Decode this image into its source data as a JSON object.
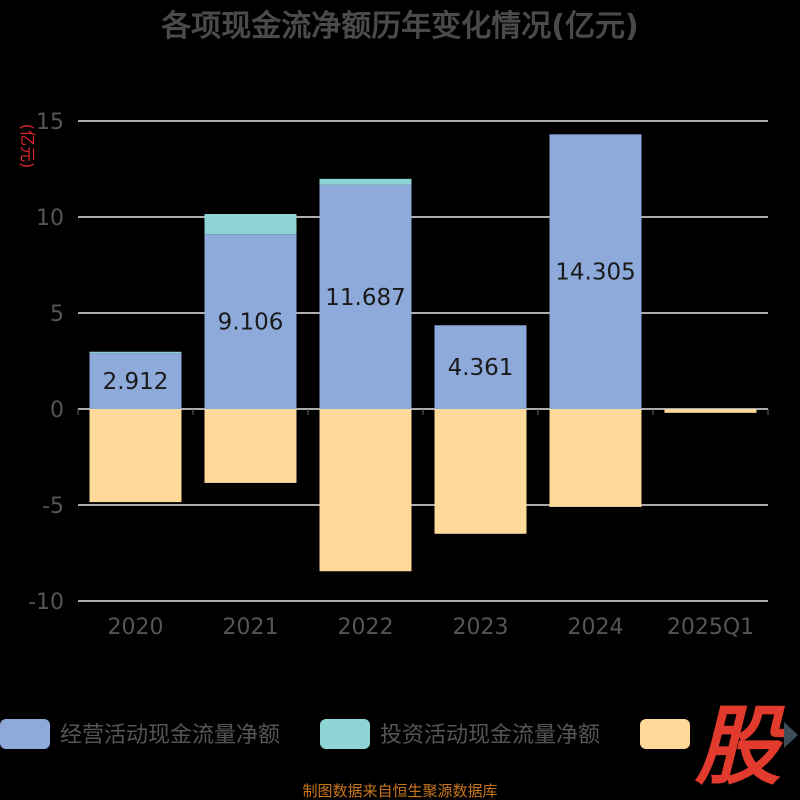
{
  "chart_data": {
    "type": "bar",
    "title": "各项现金流净额历年变化情况(亿元)",
    "unit_label": "(亿元)",
    "categories": [
      "2020",
      "2021",
      "2022",
      "2023",
      "2024",
      "2025Q1"
    ],
    "ylim": [
      -10,
      15
    ],
    "yticks": [
      "15",
      "10",
      "5",
      "0",
      "-5",
      "-10"
    ],
    "ytick_values": [
      15,
      10,
      5,
      0,
      -5,
      -10
    ],
    "grid": true,
    "stacked": true,
    "series": [
      {
        "name": "经营活动现金流量净额",
        "color": "#8eaadb",
        "values": [
          2.912,
          9.106,
          11.687,
          4.361,
          14.305,
          0
        ],
        "labels": [
          "2.912",
          "9.106",
          "11.687",
          "4.361",
          "14.305",
          ""
        ]
      },
      {
        "name": "投资活动现金流量净额",
        "color": "#8fd4d4",
        "values": [
          0.07,
          1.05,
          0.3,
          0,
          0,
          0
        ]
      },
      {
        "name": "",
        "color": "#ffd99a",
        "values": [
          -4.85,
          -3.85,
          -8.45,
          -6.5,
          -5.1,
          -0.2
        ]
      }
    ],
    "legend_position": "bottom"
  },
  "source_text": "制图数据来自恒生聚源数据库",
  "logo_text": "股"
}
